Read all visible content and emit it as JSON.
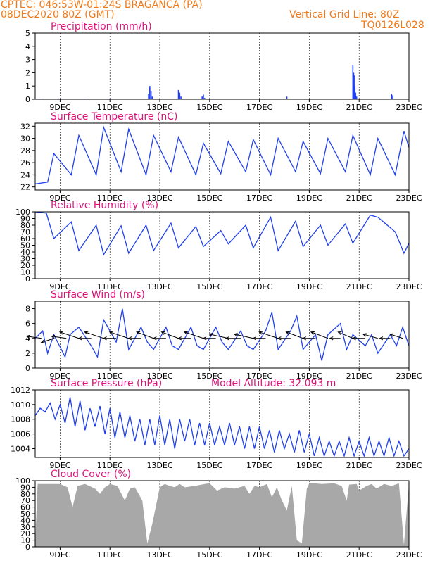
{
  "header": {
    "line1_left": "CPTEC:  046:53W-01:24S  BRAGANCA (PA)",
    "line2_left": "08DEC2020 80Z (GMT)",
    "line1_right": "Vertical Grid Line: 80Z",
    "line2_right": "TQ0126L028"
  },
  "colors": {
    "header": "#f07a1a",
    "title": "#e0107a",
    "series": "#2040f0",
    "cloud": "#a8a8a8",
    "wind_vector": "#000000"
  },
  "x_axis": {
    "tick_labels": [
      "9DEC",
      "11DEC",
      "13DEC",
      "15DEC",
      "17DEC",
      "19DEC",
      "21DEC",
      "23DEC"
    ],
    "tick_values": [
      9,
      11,
      13,
      15,
      17,
      19,
      21,
      23
    ],
    "range": [
      8,
      23
    ]
  },
  "chart_data": [
    {
      "type": "bar",
      "title": "Precipitation (mm/h)",
      "ylim": [
        0,
        5
      ],
      "yticks": [
        0,
        1,
        2,
        3,
        4,
        5
      ],
      "x": [
        8.2,
        9.0,
        10.0,
        11.0,
        12.55,
        12.6,
        12.65,
        12.7,
        13.75,
        13.8,
        13.85,
        14.7,
        14.75,
        14.8,
        18.1,
        20.75,
        20.78,
        20.8,
        20.83,
        20.86,
        20.9,
        22.3,
        22.35
      ],
      "values": [
        0.05,
        0.05,
        0.05,
        0.05,
        0.4,
        1.0,
        0.6,
        0.2,
        0.7,
        0.5,
        0.2,
        0.2,
        0.35,
        0.1,
        0.2,
        2.6,
        2.0,
        1.8,
        1.0,
        0.5,
        0.2,
        0.4,
        0.3
      ]
    },
    {
      "type": "line",
      "title": "Surface Temperature (nC)",
      "ylim": [
        21.5,
        32.5
      ],
      "yticks": [
        22,
        24,
        26,
        28,
        30,
        32
      ],
      "x": [
        8.0,
        8.5,
        8.75,
        9.45,
        9.75,
        10.45,
        10.75,
        11.45,
        11.75,
        12.45,
        12.75,
        13.45,
        13.75,
        14.45,
        14.75,
        15.45,
        15.75,
        16.45,
        16.75,
        17.45,
        17.75,
        18.45,
        18.75,
        19.45,
        19.75,
        20.45,
        20.75,
        21.45,
        21.75,
        22.45,
        22.8,
        23.0
      ],
      "values": [
        22.5,
        22.8,
        27.5,
        24.0,
        30.5,
        24.0,
        31.8,
        24.5,
        31.5,
        24.0,
        30.5,
        24.5,
        30.2,
        24.0,
        29.2,
        24.2,
        29.5,
        24.5,
        29.8,
        24.0,
        30.0,
        24.5,
        29.5,
        24.2,
        30.0,
        24.5,
        30.5,
        24.0,
        30.0,
        24.0,
        31.2,
        28.5
      ]
    },
    {
      "type": "line",
      "title": "Relative Humidity (%)",
      "ylim": [
        0,
        100
      ],
      "yticks": [
        0,
        10,
        20,
        30,
        40,
        50,
        60,
        70,
        80,
        90,
        100
      ],
      "x": [
        8.0,
        8.2,
        8.45,
        8.75,
        9.45,
        9.75,
        10.45,
        10.75,
        11.45,
        11.75,
        12.45,
        12.75,
        13.45,
        13.75,
        14.45,
        14.75,
        15.45,
        15.75,
        16.45,
        16.75,
        17.45,
        17.75,
        18.45,
        18.75,
        19.45,
        19.75,
        20.45,
        20.75,
        21.45,
        21.75,
        22.45,
        22.8,
        23.0
      ],
      "values": [
        100,
        99,
        98,
        60,
        85,
        42,
        80,
        36,
        79,
        38,
        80,
        42,
        83,
        46,
        78,
        48,
        72,
        52,
        80,
        46,
        92,
        42,
        86,
        48,
        80,
        50,
        82,
        53,
        95,
        92,
        70,
        38,
        53
      ]
    },
    {
      "type": "line",
      "title": "Surface Wind (m/s)",
      "ylim": [
        0,
        9
      ],
      "yticks": [
        0,
        2,
        4,
        6,
        8
      ],
      "x": [
        8.0,
        8.3,
        8.5,
        8.75,
        9.2,
        9.4,
        9.75,
        10.25,
        10.5,
        10.75,
        11.25,
        11.5,
        11.75,
        12.25,
        12.5,
        12.75,
        13.25,
        13.5,
        13.75,
        14.25,
        14.5,
        14.75,
        15.25,
        15.5,
        15.75,
        16.25,
        16.5,
        16.75,
        17.25,
        17.5,
        17.75,
        18.25,
        18.5,
        18.75,
        19.25,
        19.5,
        19.75,
        20.25,
        20.5,
        20.75,
        21.25,
        21.5,
        21.75,
        22.25,
        22.5,
        22.75,
        23.0
      ],
      "values": [
        4.0,
        5.0,
        2.0,
        4.5,
        1.5,
        4.5,
        5.5,
        3.0,
        1.5,
        6.5,
        3.5,
        8.0,
        2.5,
        5.5,
        3.5,
        2.5,
        5.5,
        3.0,
        2.5,
        5.5,
        3.0,
        2.5,
        5.5,
        3.5,
        2.5,
        5.0,
        3.0,
        2.5,
        5.0,
        7.5,
        2.5,
        5.0,
        7.0,
        2.5,
        4.5,
        1.0,
        4.5,
        6.0,
        2.5,
        4.5,
        3.0,
        4.5,
        2.0,
        4.5,
        3.0,
        5.5,
        3.0
      ],
      "vectors": {
        "x": [
          8.25,
          8.75,
          9.25,
          9.75,
          10.25,
          10.75,
          11.25,
          11.75,
          12.25,
          12.75,
          13.25,
          13.75,
          14.25,
          14.75,
          15.25,
          15.75,
          16.25,
          16.75,
          17.25,
          17.75,
          18.25,
          18.75,
          19.25,
          19.75,
          20.25,
          20.75,
          21.25,
          21.75,
          22.25,
          22.75
        ],
        "u": [
          -3.5,
          -3.0,
          -3.5,
          -4.5,
          -3.0,
          -4.5,
          -3.0,
          -4.5,
          -3.0,
          -4.0,
          -3.0,
          -4.0,
          -3.0,
          -4.5,
          -3.0,
          -4.5,
          -3.5,
          -4.5,
          -3.0,
          -4.5,
          -3.0,
          -4.0,
          -3.0,
          -4.0,
          -2.5,
          -3.5,
          -3.0,
          -3.5,
          -2.5,
          -3.0
        ],
        "v": [
          0.5,
          -1.0,
          0.5,
          1.5,
          0.0,
          1.5,
          0.0,
          1.5,
          0.0,
          1.5,
          0.0,
          1.5,
          0.0,
          1.5,
          0.0,
          1.0,
          0.0,
          1.0,
          0.0,
          1.5,
          0.0,
          1.5,
          0.0,
          1.5,
          0.0,
          1.5,
          0.0,
          1.0,
          0.0,
          1.0
        ]
      }
    },
    {
      "type": "line",
      "title": "Surface Pressure (hPa)",
      "annotation": "Model Altitude: 32.093 m",
      "ylim": [
        1002.8,
        1012
      ],
      "yticks": [
        1004,
        1006,
        1008,
        1010,
        1012
      ],
      "x": [
        8.0,
        8.2,
        8.4,
        8.6,
        8.8,
        9.0,
        9.2,
        9.4,
        9.6,
        9.8,
        10.0,
        10.2,
        10.4,
        10.6,
        10.8,
        11.0,
        11.2,
        11.4,
        11.6,
        11.8,
        12.0,
        12.2,
        12.4,
        12.6,
        12.8,
        13.0,
        13.2,
        13.4,
        13.6,
        13.8,
        14.0,
        14.2,
        14.4,
        14.6,
        14.8,
        15.0,
        15.2,
        15.4,
        15.6,
        15.8,
        16.0,
        16.2,
        16.4,
        16.6,
        16.8,
        17.0,
        17.2,
        17.4,
        17.6,
        17.8,
        18.0,
        18.2,
        18.4,
        18.6,
        18.8,
        19.0,
        19.2,
        19.4,
        19.6,
        19.8,
        20.0,
        20.2,
        20.4,
        20.6,
        20.8,
        21.0,
        21.2,
        21.4,
        21.6,
        21.8,
        22.0,
        22.2,
        22.4,
        22.6,
        22.8,
        23.0
      ],
      "values": [
        1008.5,
        1009.5,
        1009.0,
        1010.2,
        1008.0,
        1010.0,
        1007.5,
        1011.0,
        1007.0,
        1010.5,
        1006.5,
        1009.5,
        1007.0,
        1009.8,
        1006.0,
        1009.5,
        1005.5,
        1009.0,
        1005.5,
        1008.5,
        1005.0,
        1008.0,
        1004.5,
        1008.0,
        1004.5,
        1008.5,
        1004.5,
        1008.0,
        1004.0,
        1008.0,
        1005.0,
        1008.0,
        1004.5,
        1007.5,
        1004.5,
        1007.5,
        1004.5,
        1007.0,
        1004.5,
        1007.5,
        1004.5,
        1007.0,
        1004.0,
        1007.0,
        1004.0,
        1007.0,
        1004.0,
        1006.5,
        1003.5,
        1006.5,
        1004.0,
        1006.0,
        1003.5,
        1006.5,
        1003.5,
        1006.0,
        1003.0,
        1005.5,
        1003.0,
        1005.0,
        1003.0,
        1005.0,
        1003.0,
        1005.5,
        1003.0,
        1005.0,
        1003.0,
        1005.5,
        1003.0,
        1005.0,
        1003.0,
        1005.5,
        1003.0,
        1005.0,
        1003.0,
        1004.0
      ]
    },
    {
      "type": "area",
      "title": "Cloud Cover (%)",
      "ylim": [
        0,
        100
      ],
      "yticks": [
        0,
        10,
        20,
        30,
        40,
        50,
        60,
        70,
        80,
        90,
        100
      ],
      "x": [
        8.0,
        8.1,
        9.0,
        9.3,
        9.5,
        9.7,
        10.0,
        10.4,
        10.6,
        10.8,
        11.0,
        11.3,
        11.6,
        11.8,
        12.0,
        12.3,
        12.5,
        12.7,
        13.0,
        13.2,
        13.4,
        13.6,
        13.8,
        14.0,
        14.4,
        14.8,
        15.0,
        15.3,
        15.6,
        16.0,
        16.4,
        16.6,
        16.8,
        17.0,
        17.3,
        17.5,
        17.7,
        17.9,
        18.1,
        18.3,
        18.5,
        18.7,
        18.9,
        19.0,
        19.2,
        19.5,
        20.0,
        20.3,
        20.5,
        20.6,
        20.9,
        21.0,
        21.3,
        21.5,
        21.7,
        22.0,
        22.3,
        22.6,
        22.8,
        23.0
      ],
      "values": [
        5,
        95,
        95,
        90,
        60,
        92,
        95,
        88,
        80,
        90,
        95,
        92,
        70,
        88,
        90,
        70,
        5,
        35,
        90,
        95,
        92,
        90,
        95,
        90,
        92,
        95,
        96,
        85,
        90,
        88,
        92,
        80,
        92,
        90,
        95,
        75,
        90,
        70,
        55,
        92,
        10,
        5,
        88,
        96,
        96,
        95,
        96,
        92,
        70,
        94,
        95,
        85,
        92,
        95,
        88,
        95,
        92,
        96,
        3,
        96
      ]
    }
  ]
}
